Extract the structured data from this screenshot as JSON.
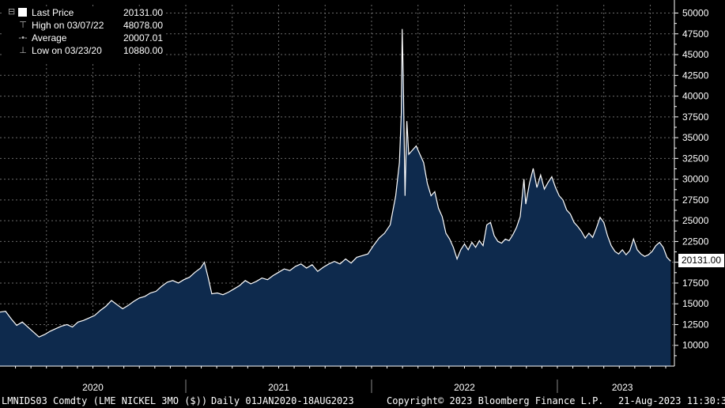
{
  "legend": {
    "last": {
      "label": "Last Price",
      "value": "20131.00"
    },
    "high": {
      "label": "High on 03/07/22",
      "value": "48078.00"
    },
    "average": {
      "label": "Average",
      "value": "20007.01"
    },
    "low": {
      "label": "Low on 03/23/20",
      "value": "10880.00"
    },
    "expander_glyph": "⊟"
  },
  "last_price_tag": "20131.00",
  "footer": {
    "ticker": "LMNIDS03 Comdty (LME NICKEL   3MO ($))",
    "range": "Daily 01JAN2020-18AUG2023",
    "copyright": "Copyright© 2023 Bloomberg Finance L.P.",
    "timestamp": "21-Aug-2023 11:30:33"
  },
  "colors": {
    "background": "#000000",
    "area_fill": "#0e2a4d",
    "line": "#ffffff",
    "grid": "#6a6a6a"
  },
  "chart_data": {
    "type": "area",
    "y_axis_position": "right",
    "ylim": [
      7500,
      51000
    ],
    "yticks": [
      "50000",
      "47500",
      "45000",
      "42500",
      "40000",
      "37500",
      "35000",
      "32500",
      "30000",
      "27500",
      "25000",
      "22500",
      "20000",
      "17500",
      "15000",
      "12500",
      "10000"
    ],
    "xlim": [
      2020.0,
      2023.63
    ],
    "x_tick_labels": [
      {
        "x": 2020.5,
        "label": "2020"
      },
      {
        "x": 2021.5,
        "label": "2021"
      },
      {
        "x": 2022.5,
        "label": "2022"
      },
      {
        "x": 2023.35,
        "label": "2023"
      }
    ],
    "x_year_boundaries": [
      2021.0,
      2022.0,
      2023.0
    ],
    "series": [
      {
        "points": [
          [
            2020.0,
            14000
          ],
          [
            2020.03,
            14100
          ],
          [
            2020.06,
            13200
          ],
          [
            2020.09,
            12400
          ],
          [
            2020.12,
            12800
          ],
          [
            2020.15,
            12200
          ],
          [
            2020.18,
            11600
          ],
          [
            2020.21,
            11000
          ],
          [
            2020.24,
            11300
          ],
          [
            2020.27,
            11700
          ],
          [
            2020.3,
            12000
          ],
          [
            2020.33,
            12300
          ],
          [
            2020.36,
            12500
          ],
          [
            2020.39,
            12200
          ],
          [
            2020.42,
            12800
          ],
          [
            2020.45,
            13000
          ],
          [
            2020.48,
            13300
          ],
          [
            2020.51,
            13600
          ],
          [
            2020.54,
            14200
          ],
          [
            2020.57,
            14700
          ],
          [
            2020.6,
            15400
          ],
          [
            2020.63,
            14900
          ],
          [
            2020.66,
            14400
          ],
          [
            2020.69,
            14800
          ],
          [
            2020.72,
            15300
          ],
          [
            2020.75,
            15700
          ],
          [
            2020.78,
            15900
          ],
          [
            2020.81,
            16300
          ],
          [
            2020.84,
            16500
          ],
          [
            2020.87,
            17100
          ],
          [
            2020.9,
            17600
          ],
          [
            2020.93,
            17800
          ],
          [
            2020.96,
            17500
          ],
          [
            2020.99,
            17900
          ],
          [
            2021.02,
            18200
          ],
          [
            2021.05,
            18800
          ],
          [
            2021.08,
            19300
          ],
          [
            2021.1,
            20000
          ],
          [
            2021.12,
            18200
          ],
          [
            2021.14,
            16200
          ],
          [
            2021.17,
            16300
          ],
          [
            2021.2,
            16100
          ],
          [
            2021.23,
            16400
          ],
          [
            2021.26,
            16800
          ],
          [
            2021.29,
            17200
          ],
          [
            2021.32,
            17800
          ],
          [
            2021.35,
            17400
          ],
          [
            2021.38,
            17700
          ],
          [
            2021.41,
            18100
          ],
          [
            2021.44,
            17900
          ],
          [
            2021.47,
            18400
          ],
          [
            2021.5,
            18800
          ],
          [
            2021.53,
            19200
          ],
          [
            2021.56,
            19000
          ],
          [
            2021.59,
            19500
          ],
          [
            2021.62,
            19800
          ],
          [
            2021.65,
            19300
          ],
          [
            2021.68,
            19700
          ],
          [
            2021.71,
            18900
          ],
          [
            2021.74,
            19400
          ],
          [
            2021.77,
            19800
          ],
          [
            2021.8,
            20100
          ],
          [
            2021.83,
            19800
          ],
          [
            2021.86,
            20400
          ],
          [
            2021.89,
            19900
          ],
          [
            2021.92,
            20600
          ],
          [
            2021.95,
            20800
          ],
          [
            2021.98,
            21000
          ],
          [
            2022.01,
            22000
          ],
          [
            2022.04,
            22900
          ],
          [
            2022.07,
            23500
          ],
          [
            2022.1,
            24500
          ],
          [
            2022.13,
            28000
          ],
          [
            2022.15,
            32000
          ],
          [
            2022.16,
            38000
          ],
          [
            2022.165,
            48078
          ],
          [
            2022.17,
            43000
          ],
          [
            2022.18,
            28000
          ],
          [
            2022.19,
            37000
          ],
          [
            2022.2,
            33000
          ],
          [
            2022.22,
            33500
          ],
          [
            2022.24,
            34000
          ],
          [
            2022.26,
            33000
          ],
          [
            2022.28,
            32000
          ],
          [
            2022.3,
            29500
          ],
          [
            2022.32,
            28000
          ],
          [
            2022.34,
            28500
          ],
          [
            2022.36,
            26500
          ],
          [
            2022.38,
            25500
          ],
          [
            2022.4,
            23500
          ],
          [
            2022.42,
            22800
          ],
          [
            2022.44,
            21800
          ],
          [
            2022.46,
            20400
          ],
          [
            2022.48,
            21500
          ],
          [
            2022.5,
            22200
          ],
          [
            2022.52,
            21500
          ],
          [
            2022.54,
            22400
          ],
          [
            2022.56,
            21800
          ],
          [
            2022.58,
            22600
          ],
          [
            2022.6,
            22000
          ],
          [
            2022.62,
            24500
          ],
          [
            2022.64,
            24800
          ],
          [
            2022.66,
            23200
          ],
          [
            2022.68,
            22500
          ],
          [
            2022.7,
            22300
          ],
          [
            2022.72,
            22800
          ],
          [
            2022.74,
            22600
          ],
          [
            2022.76,
            23300
          ],
          [
            2022.78,
            24200
          ],
          [
            2022.8,
            25500
          ],
          [
            2022.82,
            30000
          ],
          [
            2022.83,
            27000
          ],
          [
            2022.85,
            29500
          ],
          [
            2022.87,
            31300
          ],
          [
            2022.89,
            29000
          ],
          [
            2022.91,
            30500
          ],
          [
            2022.93,
            28800
          ],
          [
            2022.95,
            29600
          ],
          [
            2022.97,
            30300
          ],
          [
            2022.99,
            29000
          ],
          [
            2023.01,
            28000
          ],
          [
            2023.03,
            27500
          ],
          [
            2023.05,
            26300
          ],
          [
            2023.07,
            25800
          ],
          [
            2023.09,
            24800
          ],
          [
            2023.11,
            24300
          ],
          [
            2023.13,
            23700
          ],
          [
            2023.15,
            22900
          ],
          [
            2023.17,
            23500
          ],
          [
            2023.19,
            23000
          ],
          [
            2023.21,
            24100
          ],
          [
            2023.23,
            25400
          ],
          [
            2023.25,
            24800
          ],
          [
            2023.27,
            23200
          ],
          [
            2023.29,
            22000
          ],
          [
            2023.31,
            21300
          ],
          [
            2023.33,
            21000
          ],
          [
            2023.35,
            21500
          ],
          [
            2023.37,
            20900
          ],
          [
            2023.39,
            21400
          ],
          [
            2023.41,
            22800
          ],
          [
            2023.43,
            21500
          ],
          [
            2023.45,
            21000
          ],
          [
            2023.47,
            20700
          ],
          [
            2023.49,
            20900
          ],
          [
            2023.51,
            21300
          ],
          [
            2023.53,
            22000
          ],
          [
            2023.55,
            22400
          ],
          [
            2023.57,
            21800
          ],
          [
            2023.59,
            20600
          ],
          [
            2023.61,
            20131
          ]
        ]
      }
    ]
  }
}
